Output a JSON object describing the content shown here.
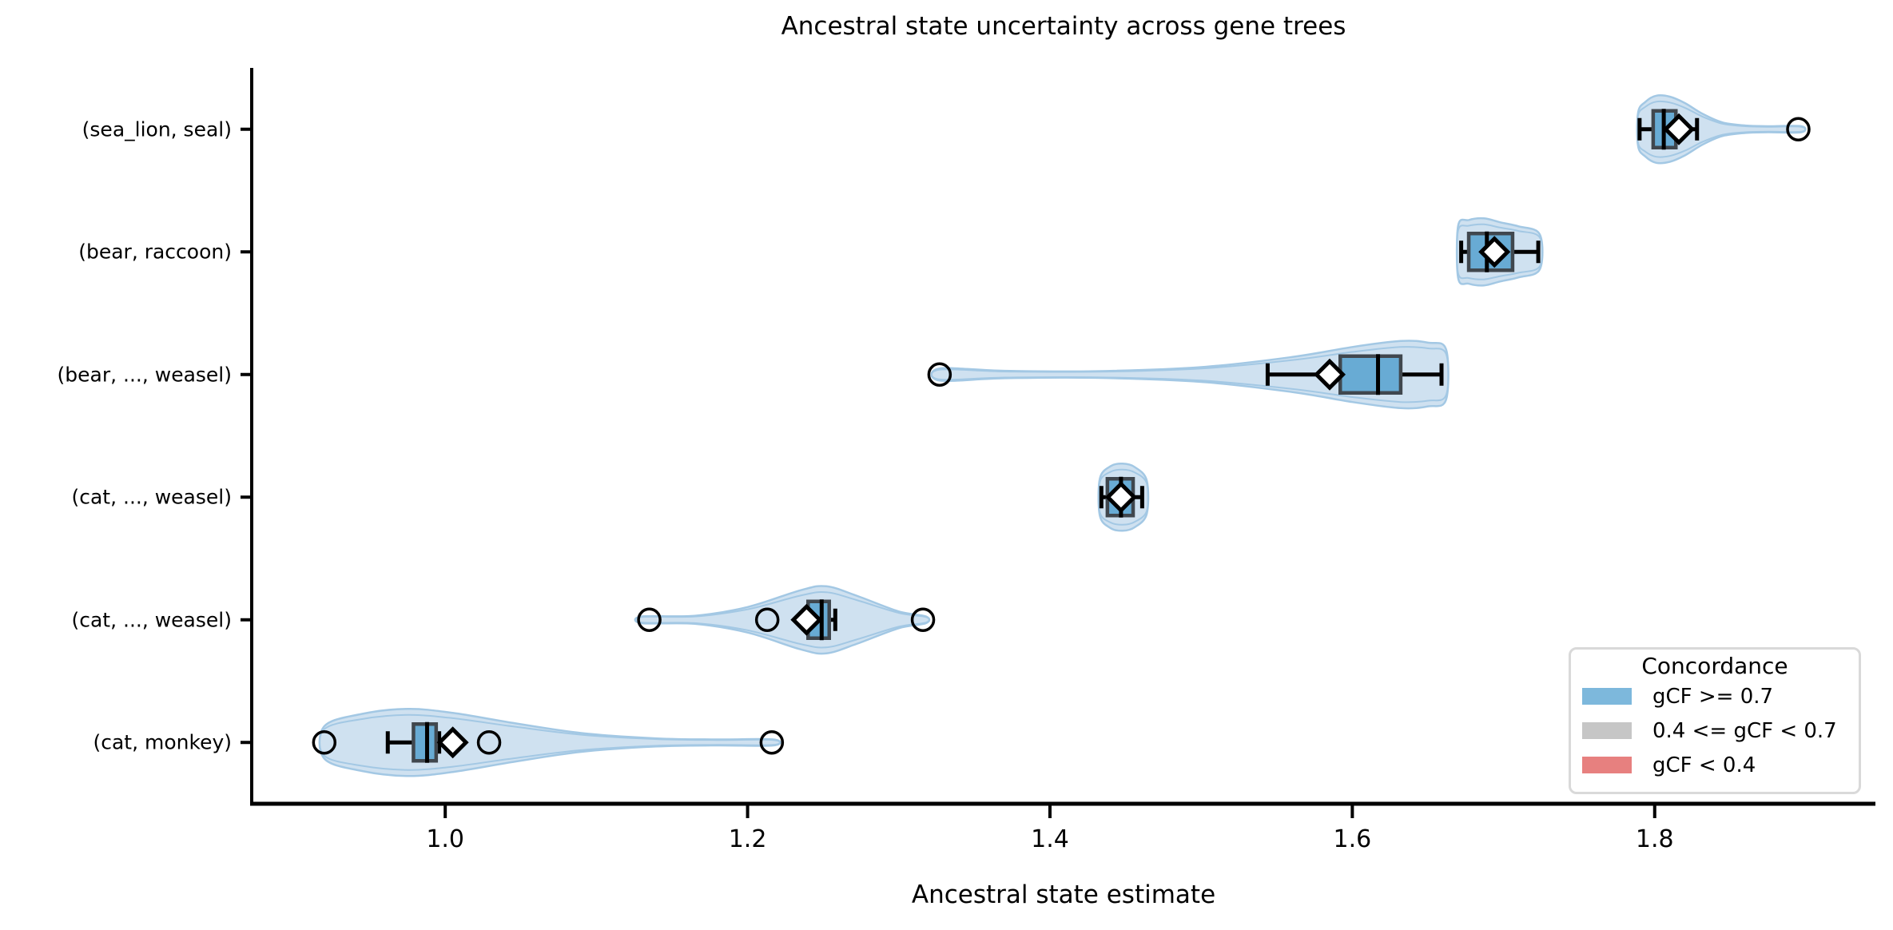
{
  "style": {
    "background": "#ffffff",
    "violin_fill": "#cfe1f0",
    "violin_edge": "#a3c8e4",
    "box_fill": "#68abd4",
    "box_edge": "#40474e",
    "marker_color": "#000000",
    "axis_color": "#000000",
    "diamond_fill": "#ffffff",
    "legend_border": "#d9d9d9"
  },
  "chart_data": {
    "type": "violin+box",
    "orientation": "horizontal",
    "title": "Ancestral state uncertainty across gene trees",
    "xlabel": "Ancestral state estimate",
    "ylabel": "",
    "grid": false,
    "xticks": [
      1.0,
      1.2,
      1.4,
      1.6,
      1.8
    ],
    "xtick_labels": [
      "1.0",
      "1.2",
      "1.4",
      "1.6",
      "1.8"
    ],
    "xlim": [
      0.872,
      1.946
    ],
    "categories": [
      "(sea_lion, seal)",
      "(bear, raccoon)",
      "(bear, ..., weasel)",
      "(cat, ..., weasel)",
      "(cat, ..., weasel)",
      "(cat, monkey)"
    ],
    "legend": {
      "title": "Concordance",
      "position": "lower right",
      "entries": [
        {
          "label": "gCF >= 0.7",
          "color": "#7db8dc"
        },
        {
          "label": "0.4 <= gCF < 0.7",
          "color": "#c6c6c6"
        },
        {
          "label": "gCF < 0.4",
          "color": "#e7807f"
        }
      ]
    },
    "rows": [
      {
        "label": "(sea_lion, seal)",
        "whisker_low": 1.79,
        "q1": 1.799,
        "median": 1.806,
        "q3": 1.814,
        "whisker_high": 1.828,
        "mean": 1.816,
        "outliers": [
          1.895
        ],
        "violin_outline": [
          [
            1.789,
            0.5
          ],
          [
            1.794,
            0.82
          ],
          [
            1.801,
            1.0
          ],
          [
            1.81,
            0.97
          ],
          [
            1.82,
            0.78
          ],
          [
            1.832,
            0.45
          ],
          [
            1.845,
            0.2
          ],
          [
            1.86,
            0.11
          ],
          [
            1.875,
            0.09
          ],
          [
            1.897,
            0.09
          ]
        ]
      },
      {
        "label": "(bear, raccoon)",
        "whisker_low": 1.672,
        "q1": 1.677,
        "median": 1.689,
        "q3": 1.706,
        "whisker_high": 1.723,
        "mean": 1.694,
        "outliers": [],
        "violin_outline": [
          [
            1.67,
            0.78
          ],
          [
            1.677,
            0.95
          ],
          [
            1.687,
            1.0
          ],
          [
            1.698,
            0.88
          ],
          [
            1.71,
            0.76
          ],
          [
            1.724,
            0.52
          ]
        ]
      },
      {
        "label": "(bear, ..., weasel)",
        "whisker_low": 1.544,
        "q1": 1.592,
        "median": 1.617,
        "q3": 1.632,
        "whisker_high": 1.659,
        "mean": 1.585,
        "outliers": [
          1.327
        ],
        "violin_outline": [
          [
            1.327,
            0.18
          ],
          [
            1.37,
            0.11
          ],
          [
            1.43,
            0.1
          ],
          [
            1.5,
            0.22
          ],
          [
            1.56,
            0.52
          ],
          [
            1.6,
            0.82
          ],
          [
            1.632,
            1.0
          ],
          [
            1.65,
            0.95
          ],
          [
            1.662,
            0.75
          ]
        ]
      },
      {
        "label": "(cat, ..., weasel)",
        "whisker_low": 1.434,
        "q1": 1.438,
        "median": 1.447,
        "q3": 1.455,
        "whisker_high": 1.461,
        "mean": 1.447,
        "outliers": [],
        "violin_outline": [
          [
            1.433,
            0.55
          ],
          [
            1.44,
            0.92
          ],
          [
            1.448,
            1.0
          ],
          [
            1.456,
            0.9
          ],
          [
            1.464,
            0.5
          ]
        ]
      },
      {
        "label": "(cat, ..., weasel)",
        "whisker_low": 1.237,
        "q1": 1.24,
        "median": 1.249,
        "q3": 1.254,
        "whisker_high": 1.258,
        "mean": 1.239,
        "outliers": [
          1.135,
          1.213,
          1.316
        ],
        "violin_outline": [
          [
            1.13,
            0.1
          ],
          [
            1.165,
            0.12
          ],
          [
            1.2,
            0.38
          ],
          [
            1.235,
            0.88
          ],
          [
            1.252,
            1.0
          ],
          [
            1.272,
            0.72
          ],
          [
            1.3,
            0.25
          ],
          [
            1.318,
            0.1
          ]
        ]
      },
      {
        "label": "(cat, monkey)",
        "whisker_low": 0.962,
        "q1": 0.979,
        "median": 0.988,
        "q3": 0.994,
        "whisker_high": 0.996,
        "mean": 1.005,
        "outliers": [
          0.92,
          1.029,
          1.216
        ],
        "violin_outline": [
          [
            0.92,
            0.48
          ],
          [
            0.945,
            0.85
          ],
          [
            0.975,
            1.0
          ],
          [
            1.005,
            0.88
          ],
          [
            1.045,
            0.58
          ],
          [
            1.09,
            0.28
          ],
          [
            1.14,
            0.12
          ],
          [
            1.18,
            0.09
          ],
          [
            1.217,
            0.09
          ]
        ]
      }
    ]
  }
}
